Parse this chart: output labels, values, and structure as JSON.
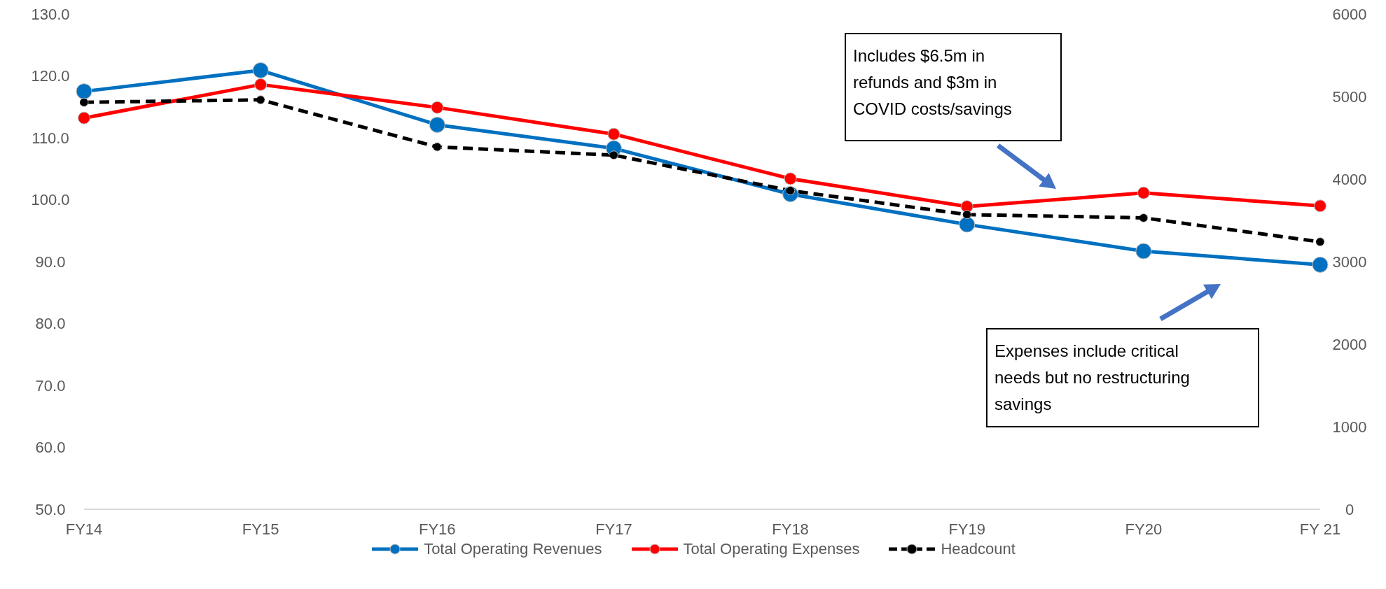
{
  "chart_data": {
    "type": "line",
    "categories": [
      "FY14",
      "FY15",
      "FY16",
      "FY17",
      "FY18",
      "FY19",
      "FY20",
      "FY 21"
    ],
    "series": [
      {
        "name": "Total Operating Revenues",
        "color": "#0070c0",
        "values": [
          117.5,
          120.9,
          112.1,
          108.3,
          100.9,
          96.0,
          91.7,
          89.5
        ]
      },
      {
        "name": "Total Operating Expenses",
        "color": "#ff0000",
        "values": [
          113.2,
          118.6,
          114.9,
          110.6,
          103.4,
          98.9,
          101.1,
          99.0
        ]
      },
      {
        "name": "Headcount",
        "color": "#000000",
        "axis": "y2",
        "line_style": "dashed",
        "values": [
          4930,
          4960,
          4390,
          4290,
          3860,
          3570,
          3530,
          3240
        ]
      }
    ],
    "ylim": [
      50,
      130
    ],
    "yticks": [
      {
        "value": 50,
        "label": "50.0"
      },
      {
        "value": 60,
        "label": "60.0"
      },
      {
        "value": 70,
        "label": "70.0"
      },
      {
        "value": 80,
        "label": "80.0"
      },
      {
        "value": 90,
        "label": "90.0"
      },
      {
        "value": 100,
        "label": "100.0"
      },
      {
        "value": 110,
        "label": "110.0"
      },
      {
        "value": 120,
        "label": "120.0"
      },
      {
        "value": 130,
        "label": "130.0"
      }
    ],
    "y2lim": [
      0,
      6000
    ],
    "y2ticks": [
      0,
      1000,
      2000,
      3000,
      4000,
      5000,
      6000
    ],
    "marker": "circle",
    "legend": "bottom",
    "annotations": [
      "Includes $6.5m in refunds and $3m in COVID costs/savings",
      "Expenses include critical needs but no restructuring savings"
    ]
  }
}
